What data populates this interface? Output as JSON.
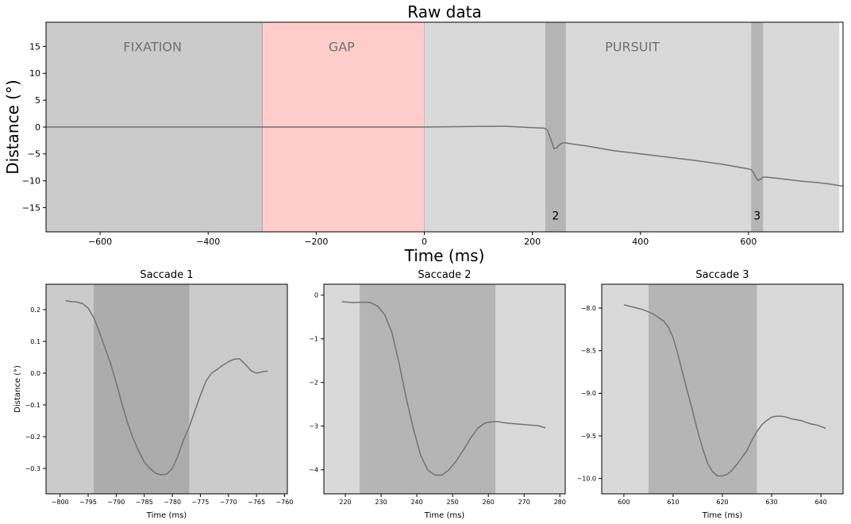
{
  "colors": {
    "fixation_bg": "#cbcbcb",
    "gap_bg": "#ffcccc",
    "pursuit_bg": "#d9d9d9",
    "saccade_band": "#b5b5b5",
    "sub1_band": "#acacac",
    "sub1_bg": "#cbcbcb",
    "sub_bg": "#d9d9d9",
    "trace": "#737373",
    "phase_label": "#707070"
  },
  "chart_data": [
    {
      "id": "raw",
      "type": "line",
      "title": "Raw data",
      "xlabel": "Time (ms)",
      "ylabel": "Distance (°)",
      "xlim": [
        -700,
        775
      ],
      "ylim": [
        -19.5,
        19.5
      ],
      "xticks": [
        -600,
        -400,
        -200,
        0,
        200,
        400,
        600
      ],
      "yticks": [
        -15,
        -10,
        -5,
        0,
        5,
        10,
        15
      ],
      "grid": false,
      "phases": [
        {
          "name": "FIXATION",
          "start": -700,
          "end": -300,
          "color": "#cbcbcb"
        },
        {
          "name": "GAP",
          "start": -300,
          "end": 0,
          "color": "#ffcccc"
        },
        {
          "name": "PURSUIT",
          "start": 0,
          "end": 768,
          "color": "#d9d9d9"
        }
      ],
      "saccade_marks": [
        {
          "label": "2",
          "start": 224,
          "end": 262
        },
        {
          "label": "3",
          "start": 605,
          "end": 627
        }
      ],
      "series": [
        {
          "x": [
            -700,
            -600,
            -500,
            -400,
            -300,
            -200,
            -100,
            0,
            100,
            150,
            200,
            222,
            228,
            235,
            240,
            245,
            250,
            255,
            262,
            270,
            300,
            350,
            400,
            450,
            500,
            550,
            600,
            605,
            610,
            615,
            618,
            622,
            627,
            635,
            650,
            700,
            725,
            750,
            775
          ],
          "y": [
            0,
            0,
            0,
            0,
            0,
            0,
            0,
            0,
            0.1,
            0.15,
            -0.1,
            -0.2,
            -0.6,
            -2.5,
            -4.0,
            -3.9,
            -3.3,
            -3.0,
            -2.95,
            -3.1,
            -3.5,
            -4.4,
            -5.0,
            -5.6,
            -6.2,
            -6.9,
            -7.8,
            -7.95,
            -8.6,
            -9.6,
            -9.95,
            -9.7,
            -9.3,
            -9.35,
            -9.5,
            -10.1,
            -10.3,
            -10.6,
            -11.0
          ]
        }
      ]
    },
    {
      "id": "sac1",
      "type": "line",
      "title": "Saccade 1",
      "xlabel": "Time (ms)",
      "ylabel": "Distance (°)",
      "xlim": [
        -802.5,
        -759.5
      ],
      "ylim": [
        -0.38,
        0.28
      ],
      "xticks": [
        -800,
        -795,
        -790,
        -785,
        -780,
        -775,
        -770,
        -765,
        -760
      ],
      "yticks": [
        -0.3,
        -0.2,
        -0.1,
        0.0,
        0.1,
        0.2
      ],
      "ytick_labels": [
        "−0.3",
        "−0.2",
        "−0.1",
        "0.0",
        "0.1",
        "0.2"
      ],
      "band": {
        "start": -794,
        "end": -777
      },
      "series": [
        {
          "x": [
            -799,
            -798,
            -797,
            -796,
            -795,
            -794,
            -793,
            -792,
            -791,
            -790,
            -789,
            -788,
            -787,
            -786,
            -785,
            -784,
            -783,
            -782,
            -781,
            -780,
            -779,
            -778,
            -777,
            -776,
            -775,
            -774,
            -773,
            -772,
            -771,
            -770,
            -769,
            -768,
            -767,
            -766,
            -765,
            -764,
            -763
          ],
          "y": [
            0.228,
            0.225,
            0.224,
            0.219,
            0.205,
            0.175,
            0.13,
            0.08,
            0.03,
            -0.03,
            -0.095,
            -0.155,
            -0.205,
            -0.245,
            -0.28,
            -0.3,
            -0.315,
            -0.32,
            -0.318,
            -0.3,
            -0.26,
            -0.21,
            -0.17,
            -0.12,
            -0.07,
            -0.025,
            0.0,
            0.012,
            0.025,
            0.036,
            0.044,
            0.045,
            0.028,
            0.008,
            0.0,
            0.004,
            0.007
          ]
        }
      ]
    },
    {
      "id": "sac2",
      "type": "line",
      "title": "Saccade 2",
      "xlabel": "Time (ms)",
      "ylabel": "",
      "xlim": [
        214,
        281.5
      ],
      "ylim": [
        -4.55,
        0.25
      ],
      "xticks": [
        220,
        230,
        240,
        250,
        260,
        270,
        280
      ],
      "yticks": [
        -4,
        -3,
        -2,
        -1,
        0
      ],
      "ytick_labels": [
        "−4",
        "−3",
        "−2",
        "−1",
        "0"
      ],
      "band": {
        "start": 224,
        "end": 262
      },
      "series": [
        {
          "x": [
            219,
            222,
            225,
            227,
            229,
            231,
            233,
            235,
            237,
            239,
            241,
            243,
            245,
            247,
            249,
            251,
            253,
            255,
            257,
            259,
            261,
            263,
            265,
            268,
            271,
            274,
            276
          ],
          "y": [
            -0.15,
            -0.17,
            -0.16,
            -0.17,
            -0.25,
            -0.45,
            -0.85,
            -1.55,
            -2.35,
            -3.05,
            -3.65,
            -4.0,
            -4.12,
            -4.12,
            -4.0,
            -3.8,
            -3.55,
            -3.28,
            -3.05,
            -2.93,
            -2.9,
            -2.9,
            -2.93,
            -2.95,
            -2.97,
            -2.99,
            -3.04
          ]
        }
      ]
    },
    {
      "id": "sac3",
      "type": "line",
      "title": "Saccade 3",
      "xlabel": "Time (ms)",
      "ylabel": "",
      "xlim": [
        595.5,
        644.5
      ],
      "ylim": [
        -10.18,
        -7.72
      ],
      "xticks": [
        600,
        610,
        620,
        630,
        640
      ],
      "yticks": [
        -10.0,
        -9.5,
        -9.0,
        -8.5,
        -8.0
      ],
      "ytick_labels": [
        "−10.0",
        "−9.5",
        "−9.0",
        "−8.5",
        "−8.0"
      ],
      "band": {
        "start": 605,
        "end": 627
      },
      "series": [
        {
          "x": [
            600,
            602,
            604,
            606,
            608,
            609,
            610,
            611,
            612,
            613,
            614,
            615,
            616,
            617,
            618,
            619,
            620,
            621,
            622,
            623,
            624,
            625,
            626,
            627,
            628,
            629,
            630,
            631,
            632,
            633,
            634,
            635,
            636,
            637,
            638,
            639,
            640,
            641
          ],
          "y": [
            -7.96,
            -7.99,
            -8.02,
            -8.07,
            -8.15,
            -8.22,
            -8.35,
            -8.55,
            -8.78,
            -9.0,
            -9.22,
            -9.45,
            -9.65,
            -9.82,
            -9.92,
            -9.97,
            -9.97,
            -9.95,
            -9.9,
            -9.83,
            -9.75,
            -9.67,
            -9.55,
            -9.45,
            -9.37,
            -9.32,
            -9.28,
            -9.27,
            -9.27,
            -9.28,
            -9.3,
            -9.31,
            -9.32,
            -9.34,
            -9.36,
            -9.37,
            -9.39,
            -9.41
          ]
        }
      ]
    }
  ]
}
